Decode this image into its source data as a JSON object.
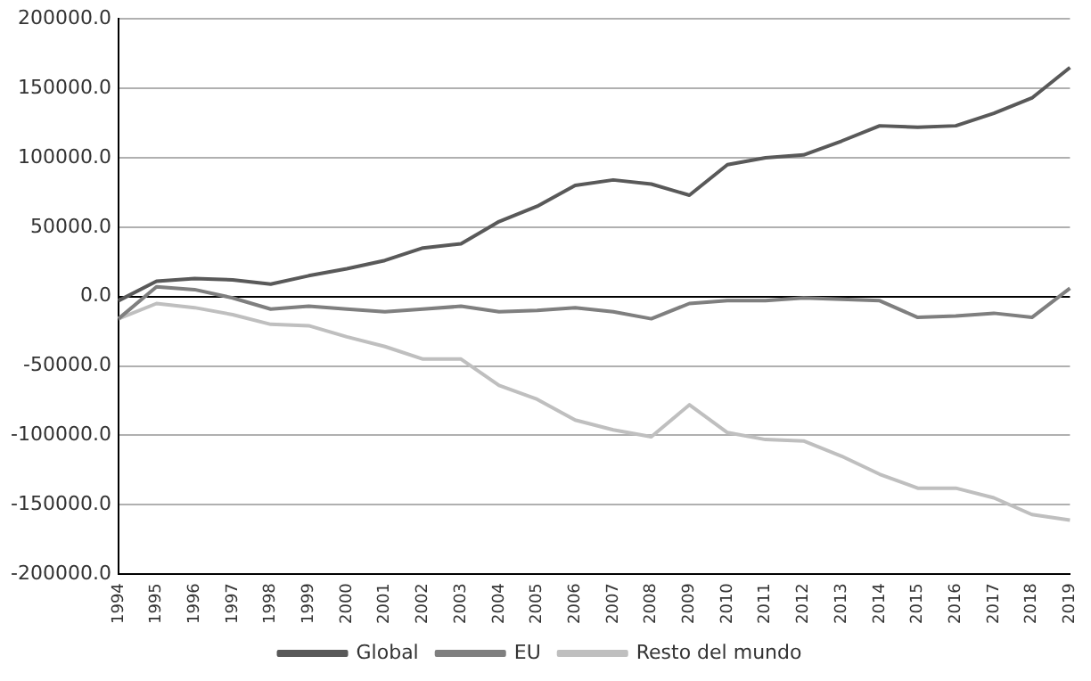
{
  "chart_data": {
    "type": "line",
    "categories": [
      "1994",
      "1995",
      "1996",
      "1997",
      "1998",
      "1999",
      "2000",
      "2001",
      "2002",
      "2003",
      "2004",
      "2005",
      "2006",
      "2007",
      "2008",
      "2009",
      "2010",
      "2011",
      "2012",
      "2013",
      "2014",
      "2015",
      "2016",
      "2017",
      "2018",
      "2019"
    ],
    "series": [
      {
        "name": "Global",
        "color": "#595959",
        "values": [
          -3000,
          11000,
          13000,
          12000,
          9000,
          15000,
          20000,
          26000,
          35000,
          38000,
          54000,
          65000,
          80000,
          84000,
          81000,
          73000,
          95000,
          100000,
          102000,
          112000,
          123000,
          122000,
          123000,
          132000,
          143000,
          165000
        ]
      },
      {
        "name": "EU",
        "color": "#7f7f7f",
        "values": [
          -16000,
          7000,
          5000,
          -1000,
          -9000,
          -7000,
          -9000,
          -11000,
          -9000,
          -7000,
          -11000,
          -10000,
          -8000,
          -11000,
          -16000,
          -5000,
          -3000,
          -3000,
          -1000,
          -2000,
          -3000,
          -15000,
          -14000,
          -12000,
          -15000,
          6000
        ]
      },
      {
        "name": "Resto del mundo",
        "color": "#bfbfbf",
        "values": [
          -16000,
          -5000,
          -8000,
          -13000,
          -20000,
          -21000,
          -29000,
          -36000,
          -45000,
          -45000,
          -64000,
          -74000,
          -89000,
          -96000,
          -101000,
          -78000,
          -98000,
          -103000,
          -104000,
          -115000,
          -128000,
          -138000,
          -138000,
          -145000,
          -157000,
          -161000
        ]
      }
    ],
    "ylim": [
      -200000,
      200000
    ],
    "yticks": [
      {
        "value": -200000,
        "label": "-200000.0"
      },
      {
        "value": -150000,
        "label": "-150000.0"
      },
      {
        "value": -100000,
        "label": "-100000.0"
      },
      {
        "value": -50000,
        "label": "-50000.0"
      },
      {
        "value": 0,
        "label": "0.0"
      },
      {
        "value": 50000,
        "label": "50000.0"
      },
      {
        "value": 100000,
        "label": "100000.0"
      },
      {
        "value": 150000,
        "label": "150000.0"
      },
      {
        "value": 200000,
        "label": "200000.0"
      }
    ],
    "grid": "y",
    "legend": "bottom",
    "marker": "none",
    "line_style": "solid"
  }
}
